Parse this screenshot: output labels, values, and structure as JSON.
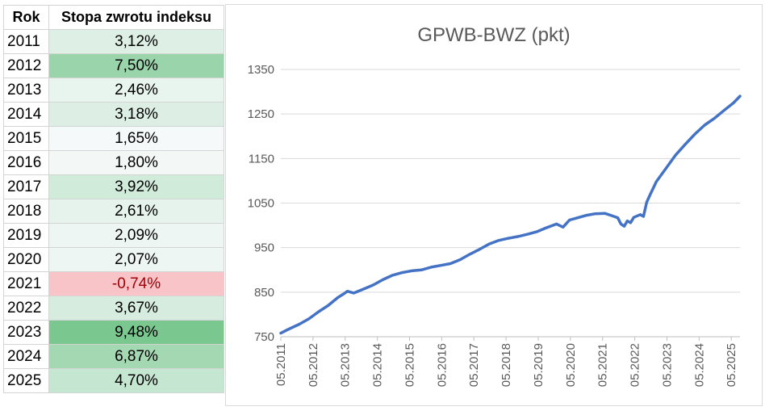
{
  "table": {
    "headers": [
      "Rok",
      "Stopa zwrotu indeksu"
    ],
    "rows": [
      {
        "year": "2011",
        "value": "3,12%",
        "num": 3.12
      },
      {
        "year": "2012",
        "value": "7,50%",
        "num": 7.5
      },
      {
        "year": "2013",
        "value": "2,46%",
        "num": 2.46
      },
      {
        "year": "2014",
        "value": "3,18%",
        "num": 3.18
      },
      {
        "year": "2015",
        "value": "1,65%",
        "num": 1.65
      },
      {
        "year": "2016",
        "value": "1,80%",
        "num": 1.8
      },
      {
        "year": "2017",
        "value": "3,92%",
        "num": 3.92
      },
      {
        "year": "2018",
        "value": "2,61%",
        "num": 2.61
      },
      {
        "year": "2019",
        "value": "2,09%",
        "num": 2.09
      },
      {
        "year": "2020",
        "value": "2,07%",
        "num": 2.07
      },
      {
        "year": "2021",
        "value": "-0,74%",
        "num": -0.74
      },
      {
        "year": "2022",
        "value": "3,67%",
        "num": 3.67
      },
      {
        "year": "2023",
        "value": "9,48%",
        "num": 9.48
      },
      {
        "year": "2024",
        "value": "6,87%",
        "num": 6.87
      },
      {
        "year": "2025",
        "value": "4,70%",
        "num": 4.7
      }
    ],
    "colors": {
      "positive": "#63be7b",
      "negative": "#f8696b",
      "neutral": "#fcfcff",
      "negative_text": "#9c0006"
    }
  },
  "chart_data": {
    "type": "line",
    "title": "GPWB-BWZ (pkt)",
    "xlabel": "",
    "ylabel": "",
    "ylim": [
      750,
      1350
    ],
    "yticks": [
      "750",
      "850",
      "950",
      "1050",
      "1150",
      "1250",
      "1350"
    ],
    "xticks": [
      "05.2011",
      "05.2012",
      "05.2013",
      "05.2014",
      "05.2015",
      "05.2016",
      "05.2017",
      "05.2018",
      "05.2019",
      "05.2020",
      "05.2021",
      "05.2022",
      "05.2023",
      "05.2024",
      "05.2025"
    ],
    "grid": true,
    "legend": "none",
    "line_color": "#4472c4",
    "series": [
      {
        "x": [
          2011.33,
          2011.6,
          2011.9,
          2012.2,
          2012.5,
          2012.8,
          2013.1,
          2013.3,
          2013.4,
          2013.6,
          2013.9,
          2014.2,
          2014.5,
          2014.8,
          2015.1,
          2015.4,
          2015.7,
          2016.0,
          2016.3,
          2016.6,
          2016.9,
          2017.2,
          2017.5,
          2017.8,
          2018.1,
          2018.4,
          2018.7,
          2019.0,
          2019.3,
          2019.6,
          2019.9,
          2020.1,
          2020.2,
          2020.3,
          2020.5,
          2020.8,
          2021.1,
          2021.4,
          2021.6,
          2021.8,
          2021.9,
          2022.0,
          2022.1,
          2022.2,
          2022.3,
          2022.5,
          2022.6,
          2022.7,
          2022.8,
          2023.0,
          2023.3,
          2023.6,
          2023.9,
          2024.2,
          2024.5,
          2024.8,
          2025.1,
          2025.4,
          2025.6
        ],
        "y": [
          758,
          768,
          778,
          790,
          806,
          820,
          838,
          847,
          852,
          848,
          857,
          866,
          878,
          888,
          894,
          898,
          900,
          906,
          910,
          914,
          923,
          935,
          946,
          958,
          966,
          971,
          975,
          980,
          986,
          995,
          1003,
          996,
          1004,
          1012,
          1016,
          1022,
          1026,
          1027,
          1022,
          1017,
          1003,
          998,
          1010,
          1006,
          1018,
          1024,
          1020,
          1052,
          1068,
          1098,
          1128,
          1158,
          1182,
          1205,
          1225,
          1240,
          1258,
          1275,
          1290
        ]
      }
    ]
  }
}
